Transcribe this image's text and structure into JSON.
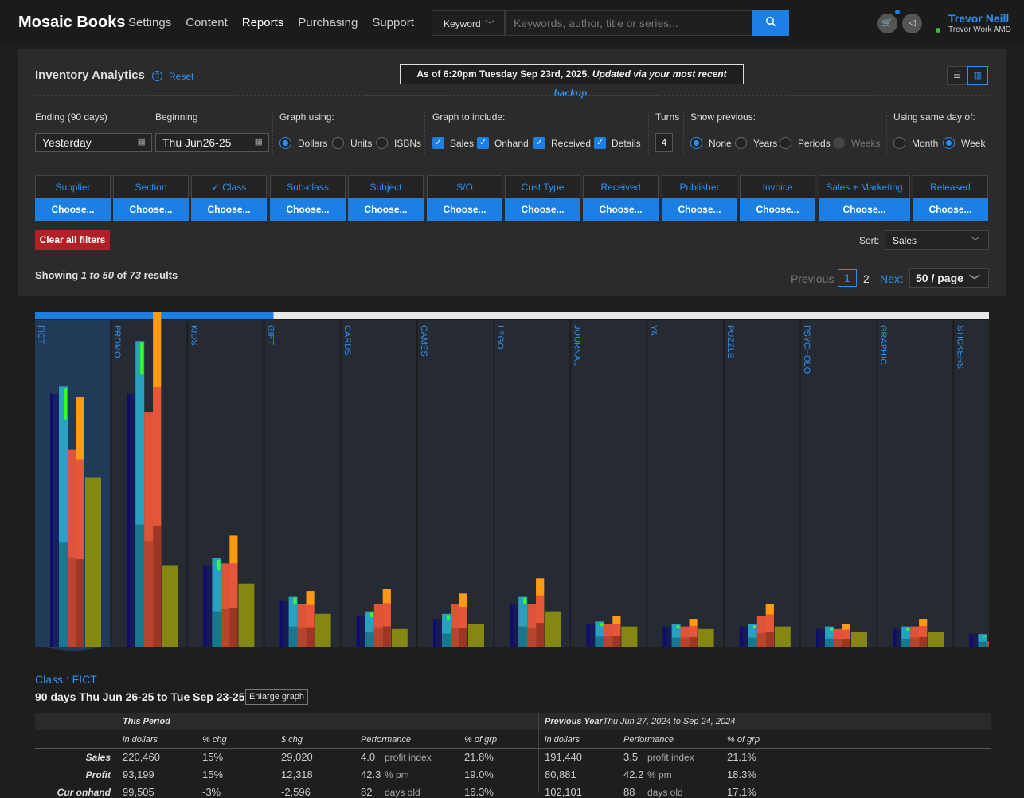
{
  "app": {
    "title": "Mosaic Books"
  },
  "nav": [
    {
      "label": "Settings"
    },
    {
      "label": "Content"
    },
    {
      "label": "Reports"
    },
    {
      "label": "Purchasing"
    },
    {
      "label": "Support"
    }
  ],
  "search": {
    "type": "Keyword",
    "placeholder": "Keywords, author, title or series..."
  },
  "user": {
    "name": "Trevor Neill",
    "workspace": "Trevor Work AMD"
  },
  "page": {
    "title": "Inventory Analytics",
    "reset": "Reset",
    "asof_prefix": "As of 6:20pm Tuesday Sep 23rd, 2025.",
    "asof_updated": "Updated via your most recent",
    "asof_link": "backup."
  },
  "controls": {
    "ending_label": "Ending (90 days)",
    "ending_value": "Yesterday",
    "beginning_label": "Beginning",
    "beginning_value": "Thu Jun26-25",
    "graph_using_label": "Graph using:",
    "graph_using": [
      {
        "label": "Dollars",
        "selected": true
      },
      {
        "label": "Units",
        "selected": false
      },
      {
        "label": "ISBNs",
        "selected": false
      }
    ],
    "include_label": "Graph to include:",
    "include": [
      {
        "label": "Sales",
        "checked": true
      },
      {
        "label": "Onhand",
        "checked": true
      },
      {
        "label": "Received",
        "checked": true
      },
      {
        "label": "Details",
        "checked": true
      }
    ],
    "turns_label": "Turns",
    "turns_value": "4",
    "previous_label": "Show previous:",
    "previous": [
      {
        "label": "None",
        "selected": true
      },
      {
        "label": "Years",
        "selected": false
      },
      {
        "label": "Periods",
        "selected": false
      },
      {
        "label": "Weeks",
        "selected": false,
        "disabled": true
      }
    ],
    "sameday_label": "Using same day of:",
    "sameday": [
      {
        "label": "Month",
        "selected": false
      },
      {
        "label": "Week",
        "selected": true
      }
    ]
  },
  "filters": [
    {
      "label": "Supplier",
      "action": "Choose..."
    },
    {
      "label": "Section",
      "action": "Choose..."
    },
    {
      "label": "✓ Class",
      "action": "Choose..."
    },
    {
      "label": "Sub-class",
      "action": "Choose..."
    },
    {
      "label": "Subject",
      "action": "Choose..."
    },
    {
      "label": "S/O",
      "action": "Choose..."
    },
    {
      "label": "Cust Type",
      "action": "Choose..."
    },
    {
      "label": "Received",
      "action": "Choose..."
    },
    {
      "label": "Publisher",
      "action": "Choose..."
    },
    {
      "label": "Invoice",
      "action": "Choose..."
    },
    {
      "label": "Sales + Marketing",
      "action": "Choose..."
    },
    {
      "label": "Released",
      "action": "Choose..."
    }
  ],
  "clear_filters": "Clear all filters",
  "sort": {
    "label": "Sort:",
    "value": "Sales"
  },
  "results": {
    "prefix": "Showing",
    "range": "1 to 50",
    "mid": "of",
    "total": "73",
    "suffix": "results"
  },
  "pagination": {
    "previous": "Previous",
    "current": "1",
    "next_page": "2",
    "next": "Next",
    "per_page": "50 / page"
  },
  "chart_data": {
    "type": "bar",
    "progress": 0.25,
    "categories": [
      "FICT",
      "PROMO",
      "KIDS",
      "GIFT",
      "CARDS",
      "GAMES",
      "LEGO",
      "JOURNAL",
      "YA",
      "PUZZLE",
      "PSYCHOLO",
      "GRAPHIC",
      "STICKERS"
    ],
    "selected": "FICT",
    "series": [
      {
        "values": [
          100,
          100,
          32,
          18,
          12,
          11,
          17,
          9,
          8,
          8,
          7,
          7,
          5
        ]
      },
      {
        "values": [
          103,
          121,
          35,
          20,
          14,
          13,
          20,
          10,
          9,
          9,
          8,
          8,
          5
        ]
      },
      {
        "values": [
          78,
          93,
          33,
          17,
          17,
          17,
          17,
          9,
          8,
          12,
          7,
          8,
          2
        ]
      },
      {
        "values": [
          99,
          137,
          44,
          22,
          23,
          21,
          27,
          12,
          11,
          17,
          9,
          11,
          0
        ]
      },
      {
        "values": [
          67,
          32,
          25,
          13,
          7,
          9,
          14,
          8,
          7,
          8,
          6,
          6,
          0
        ]
      }
    ],
    "colors": [
      "#0d0d6e",
      "#2aa7c9",
      "#e8563a",
      "#ff9a12",
      "#8a8d0f",
      "#37ff2e"
    ]
  },
  "detail": {
    "class_label": "Class : FICT",
    "period": "90 days Thu Jun 26-25 to Tue Sep 23-25",
    "enlarge": "Enlarge graph",
    "this_period": "This Period",
    "prev_year": "Previous Year",
    "prev_range": "Thu Jun 27, 2024 to Sep 24, 2024",
    "cols": [
      "in dollars",
      "% chg",
      "$ chg",
      "Performance",
      "% of grp"
    ],
    "prev_cols": [
      "in dollars",
      "Performance",
      "% of grp"
    ],
    "rows": [
      {
        "label": "Sales",
        "v": "220,460",
        "pct": "15%",
        "chg": "29,020",
        "perf": "4.0",
        "perf_unit": "profit index",
        "grp": "21.8%",
        "pv": "191,440",
        "pperf": "3.5",
        "pperf_unit": "profit index",
        "pgrp": "21.1%"
      },
      {
        "label": "Profit",
        "v": "93,199",
        "pct": "15%",
        "chg": "12,318",
        "perf": "42.3",
        "perf_unit": "% pm",
        "grp": "19.0%",
        "pv": "80,881",
        "pperf": "42.2",
        "pperf_unit": "% pm",
        "pgrp": "18.3%"
      },
      {
        "label": "Cur onhand",
        "v": "99,505",
        "pct": "-3%",
        "chg": "-2,596",
        "perf": "82",
        "perf_unit": "days old",
        "grp": "16.3%",
        "pv": "102,101",
        "pperf": "88",
        "pperf_unit": "days old",
        "pgrp": "17.1%"
      }
    ]
  }
}
